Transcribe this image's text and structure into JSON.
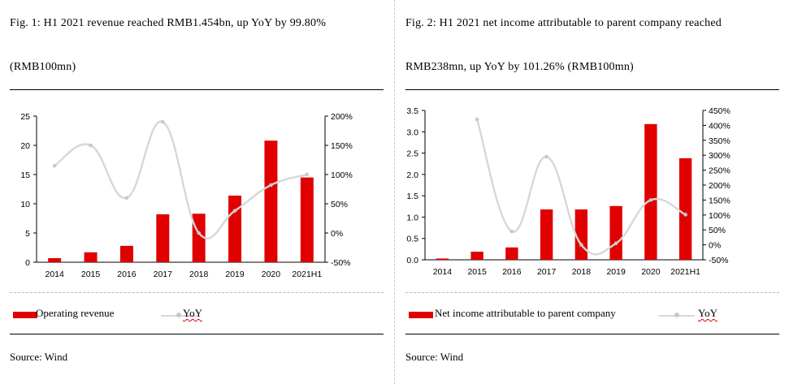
{
  "figures": [
    {
      "caption_line1": "Fig.  1:  H1  2021  revenue  reached  RMB1.454bn,  up  YoY  by  99.80%",
      "caption_line2": "(RMB100mn)",
      "legend_bar": "Operating revenue",
      "legend_line": "YoY",
      "source": "Source: Wind"
    },
    {
      "caption_line1": "Fig.  2:  H1  2021  net  income  attributable  to  parent  company  reached",
      "caption_line2": "RMB238mn, up YoY by 101.26% (RMB100mn)",
      "legend_bar": "Net income attributable to parent company",
      "legend_line": "YoY",
      "source": "Source: Wind"
    }
  ],
  "colors": {
    "bar": "#e00000",
    "line": "#d7d7d7",
    "marker": "#c8c8c8",
    "grid": "#000000"
  },
  "chart_data": [
    {
      "type": "bar",
      "categories": [
        "2014",
        "2015",
        "2016",
        "2017",
        "2018",
        "2019",
        "2020",
        "2021H1"
      ],
      "series": [
        {
          "name": "Operating revenue",
          "type": "bar",
          "axis": "left",
          "values": [
            0.7,
            1.7,
            2.8,
            8.2,
            8.3,
            11.4,
            20.8,
            14.5
          ]
        },
        {
          "name": "YoY",
          "type": "line",
          "axis": "right",
          "smooth": true,
          "values": [
            115,
            150,
            60,
            190,
            0,
            38,
            82,
            100
          ]
        }
      ],
      "ylim_left": [
        0,
        25
      ],
      "yticks_left": [
        0,
        5,
        10,
        15,
        20,
        25
      ],
      "ytick_labels_left": [
        "0",
        "5",
        "10",
        "15",
        "20",
        "25"
      ],
      "ylim_right": [
        -50,
        200
      ],
      "yticks_right": [
        -50,
        0,
        50,
        100,
        150,
        200
      ],
      "ytick_labels_right": [
        "-50%",
        "0%",
        "50%",
        "100%",
        "150%",
        "200%"
      ],
      "grid": false,
      "legend_position": "bottom"
    },
    {
      "type": "bar",
      "categories": [
        "2014",
        "2015",
        "2016",
        "2017",
        "2018",
        "2019",
        "2020",
        "2021H1"
      ],
      "series": [
        {
          "name": "Net income attributable to parent company",
          "type": "bar",
          "axis": "left",
          "values": [
            0.03,
            0.19,
            0.29,
            1.18,
            1.18,
            1.26,
            3.18,
            2.38
          ]
        },
        {
          "name": "YoY",
          "type": "line",
          "axis": "right",
          "smooth": true,
          "values": [
            null,
            420,
            45,
            295,
            0,
            5,
            150,
            101
          ]
        }
      ],
      "ylim_left": [
        0,
        3.5
      ],
      "yticks_left": [
        0,
        0.5,
        1,
        1.5,
        2,
        2.5,
        3,
        3.5
      ],
      "ytick_labels_left": [
        "0.0",
        "0.5",
        "1.0",
        "1.5",
        "2.0",
        "2.5",
        "3.0",
        "3.5"
      ],
      "ylim_right": [
        -50,
        450
      ],
      "yticks_right": [
        -50,
        0,
        50,
        100,
        150,
        200,
        250,
        300,
        350,
        400,
        450
      ],
      "ytick_labels_right": [
        "-50%",
        "0%",
        "50%",
        "100%",
        "150%",
        "200%",
        "250%",
        "300%",
        "350%",
        "400%",
        "450%"
      ],
      "grid": false,
      "legend_position": "bottom"
    }
  ]
}
